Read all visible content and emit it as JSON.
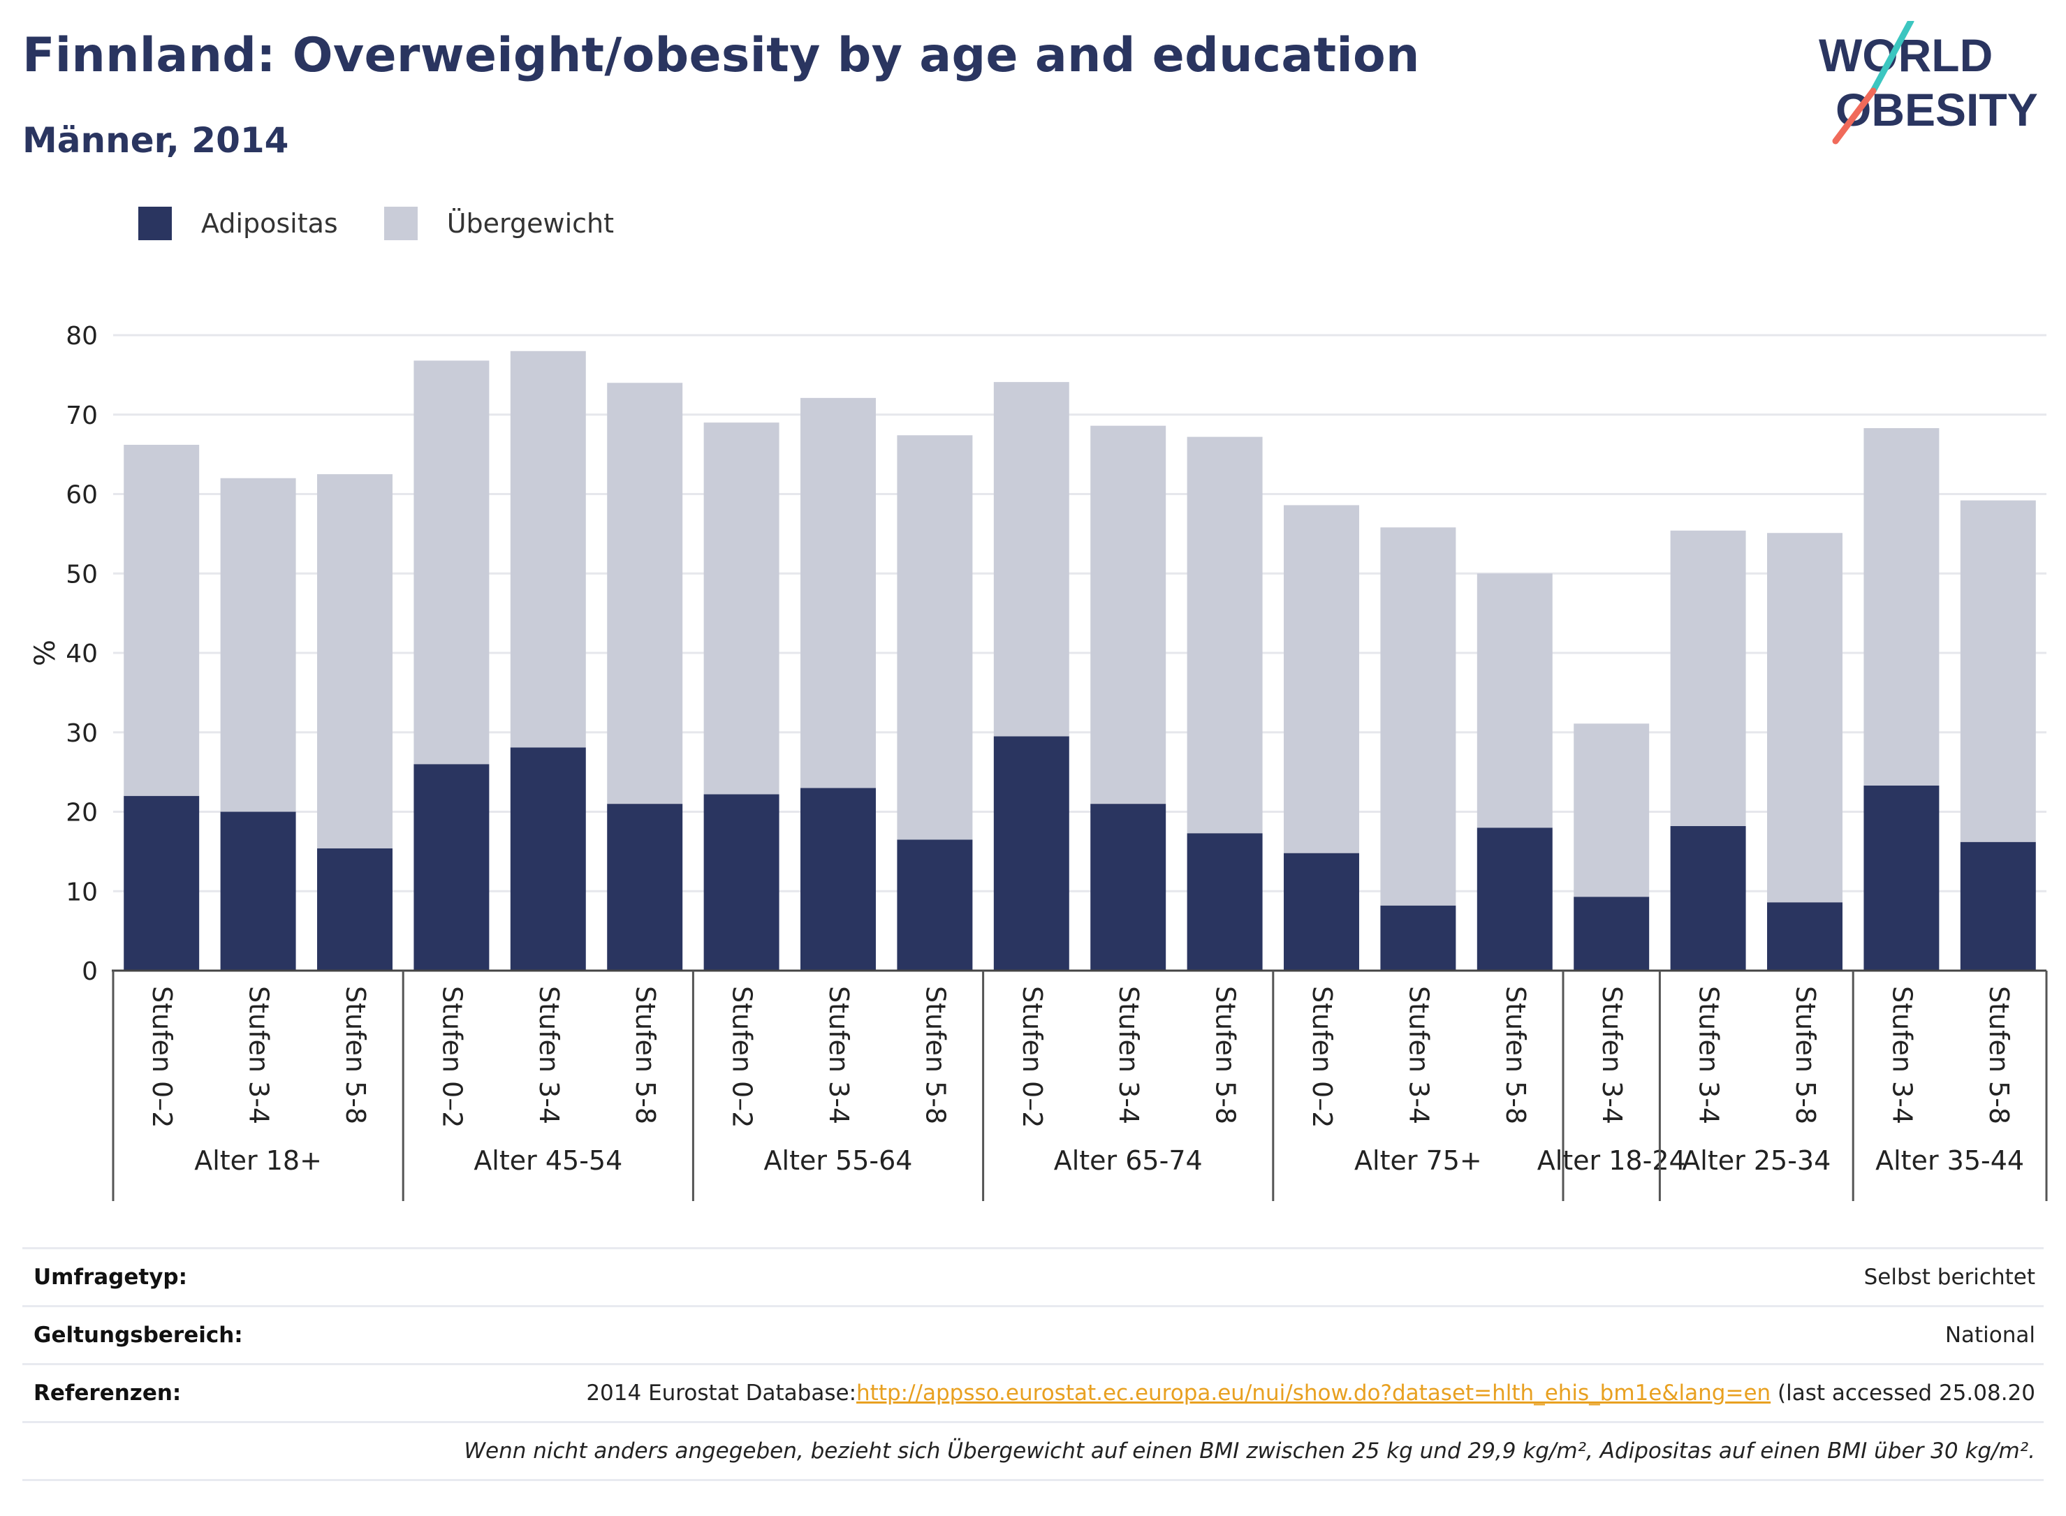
{
  "title": "Finnland: Overweight/obesity by age and education",
  "subtitle": "Männer, 2014",
  "logo": {
    "line1": "WORLD",
    "line2": "OBESITY",
    "colors": {
      "navy": "#2a3560",
      "teal": "#3cc6c0",
      "coral": "#f06a5a"
    }
  },
  "legend": [
    {
      "label": "Adipositas",
      "color": "#2a3560"
    },
    {
      "label": "Übergewicht",
      "color": "#c9ccd8"
    }
  ],
  "chart_data": {
    "type": "bar",
    "stacked": true,
    "ylabel": "%",
    "ylim": [
      0,
      80
    ],
    "yticks": [
      0,
      10,
      20,
      30,
      40,
      50,
      60,
      70,
      80
    ],
    "grid": true,
    "legend_position": "top-left",
    "categories": [
      "Stufen 0–2",
      "Stufen 3-4",
      "Stufen 5-8",
      "Stufen 0–2",
      "Stufen 3-4",
      "Stufen 5-8",
      "Stufen 0–2",
      "Stufen 3-4",
      "Stufen 5-8",
      "Stufen 0–2",
      "Stufen 3-4",
      "Stufen 5-8",
      "Stufen 0–2",
      "Stufen 3-4",
      "Stufen 5-8",
      "Stufen 3-4",
      "Stufen 3-4",
      "Stufen 5-8",
      "Stufen 3-4",
      "Stufen 5-8"
    ],
    "groups": [
      {
        "label": "Alter 18+",
        "count": 3
      },
      {
        "label": "Alter 45-54",
        "count": 3
      },
      {
        "label": "Alter 55-64",
        "count": 3
      },
      {
        "label": "Alter 65-74",
        "count": 3
      },
      {
        "label": "Alter 75+",
        "count": 3
      },
      {
        "label": "Alter 18-24",
        "count": 1
      },
      {
        "label": "Alter 25-34",
        "count": 2
      },
      {
        "label": "Alter 35-44",
        "count": 2
      }
    ],
    "series": [
      {
        "name": "Adipositas",
        "color": "#2a3560",
        "values": [
          22,
          20,
          15.4,
          26,
          28.1,
          21,
          22.2,
          23,
          16.5,
          29.5,
          21,
          17.3,
          14.8,
          8.2,
          18,
          9.3,
          18.2,
          8.6,
          23.3,
          16.2
        ]
      },
      {
        "name": "Übergewicht",
        "color": "#c9ccd8",
        "values": [
          44.2,
          42,
          47.1,
          50.8,
          49.9,
          53,
          46.8,
          49.1,
          50.9,
          44.6,
          47.6,
          49.9,
          43.8,
          47.6,
          32,
          21.8,
          37.2,
          46.5,
          45,
          43
        ]
      }
    ]
  },
  "info": [
    {
      "key": "Umfragetyp:",
      "value": "Selbst berichtet"
    },
    {
      "key": "Geltungsbereich:",
      "value": "National"
    },
    {
      "key": "Referenzen:",
      "prefix": "2014 Eurostat Database:",
      "link": "http://appsso.eurostat.ec.europa.eu/nui/show.do?dataset=hlth_ehis_bm1e&lang=en",
      "suffix": " (last accessed 25.08.20"
    }
  ],
  "note": "Wenn nicht anders angegeben, bezieht sich Übergewicht auf einen BMI zwischen 25 kg und 29,9 kg/m², Adipositas auf einen BMI über 30 kg/m²."
}
